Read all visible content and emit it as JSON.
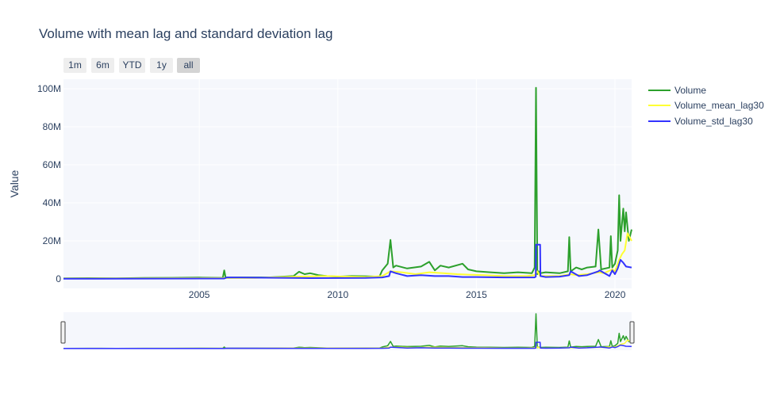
{
  "title": "Volume with mean lag and standard deviation lag",
  "range_buttons": [
    {
      "label": "1m",
      "active": false
    },
    {
      "label": "6m",
      "active": false
    },
    {
      "label": "YTD",
      "active": false
    },
    {
      "label": "1y",
      "active": false
    },
    {
      "label": "all",
      "active": true
    }
  ],
  "colors": {
    "plot_bg": "#f5f7fc",
    "grid": "#ffffff",
    "text": "#2a3f5f"
  },
  "chart_data": {
    "type": "line",
    "ylabel": "Value",
    "xlabel": "",
    "xlim": [
      2000.1,
      2020.6
    ],
    "ylim": [
      -5000000,
      105000000
    ],
    "x_ticks": [
      2005,
      2010,
      2015,
      2020
    ],
    "x_tick_labels": [
      "2005",
      "2010",
      "2015",
      "2020"
    ],
    "y_ticks": [
      0,
      20000000,
      40000000,
      60000000,
      80000000,
      100000000
    ],
    "y_tick_labels": [
      "0",
      "20M",
      "40M",
      "60M",
      "80M",
      "100M"
    ],
    "grid": true,
    "legend_position": "top-right",
    "range_slider": true,
    "series": [
      {
        "name": "Volume",
        "color": "#2ca02c",
        "x": [
          2000.1,
          2001.0,
          2002.0,
          2003.0,
          2004.0,
          2005.0,
          2005.85,
          2005.9,
          2005.95,
          2006.5,
          2007.5,
          2008.4,
          2008.6,
          2008.8,
          2009.0,
          2009.3,
          2009.6,
          2010.0,
          2010.5,
          2011.0,
          2011.5,
          2011.6,
          2011.8,
          2011.9,
          2012.0,
          2012.1,
          2012.5,
          2013.0,
          2013.3,
          2013.5,
          2013.7,
          2014.0,
          2014.5,
          2014.7,
          2015.0,
          2015.5,
          2016.0,
          2016.5,
          2017.0,
          2017.1,
          2017.15,
          2017.2,
          2017.25,
          2017.3,
          2017.5,
          2018.0,
          2018.3,
          2018.35,
          2018.4,
          2018.6,
          2018.8,
          2019.0,
          2019.3,
          2019.4,
          2019.5,
          2019.8,
          2019.85,
          2019.9,
          2020.0,
          2020.1,
          2020.15,
          2020.2,
          2020.3,
          2020.35,
          2020.4,
          2020.5,
          2020.6
        ],
        "y": [
          300000,
          400000,
          300000,
          500000,
          600000,
          700000,
          600000,
          4500000,
          700000,
          800000,
          800000,
          1500000,
          3800000,
          2500000,
          3000000,
          2000000,
          1500000,
          1200000,
          1500000,
          1400000,
          1200000,
          4500000,
          8000000,
          20500000,
          6000000,
          7000000,
          5500000,
          6500000,
          9000000,
          4500000,
          7000000,
          6000000,
          8000000,
          5000000,
          4000000,
          3500000,
          3000000,
          3500000,
          3000000,
          6000000,
          100500000,
          2500000,
          4000000,
          3000000,
          3500000,
          3000000,
          4000000,
          22000000,
          4000000,
          6000000,
          5000000,
          6000000,
          6500000,
          26000000,
          5000000,
          6000000,
          22500000,
          6000000,
          8000000,
          15000000,
          44000000,
          20000000,
          37000000,
          25000000,
          35000000,
          20000000,
          26000000
        ]
      },
      {
        "name": "Volume_mean_lag30",
        "color": "#ffff33",
        "x": [
          2000.1,
          2002.0,
          2005.0,
          2007.0,
          2008.5,
          2009.5,
          2011.0,
          2011.6,
          2011.9,
          2012.3,
          2012.8,
          2013.3,
          2013.8,
          2014.3,
          2014.8,
          2015.3,
          2016.0,
          2016.8,
          2017.1,
          2017.2,
          2017.3,
          2017.5,
          2018.0,
          2018.4,
          2018.6,
          2019.0,
          2019.4,
          2019.6,
          2019.9,
          2020.0,
          2020.15,
          2020.25,
          2020.35,
          2020.45,
          2020.6
        ],
        "y": [
          200000,
          250000,
          400000,
          500000,
          1200000,
          1500000,
          1000000,
          1500000,
          4000000,
          3500000,
          2500000,
          3500000,
          3000000,
          2500000,
          2200000,
          2000000,
          1500000,
          1500000,
          2000000,
          4000000,
          1500000,
          1500000,
          1500000,
          2500000,
          2000000,
          2500000,
          3500000,
          3000000,
          5000000,
          4000000,
          10000000,
          13000000,
          15000000,
          24000000,
          20000000
        ]
      },
      {
        "name": "Volume_std_lag30",
        "color": "#3333ff",
        "x": [
          2000.1,
          2003.0,
          2005.9,
          2006.0,
          2009.0,
          2011.0,
          2011.6,
          2011.85,
          2011.9,
          2012.1,
          2012.5,
          2013.0,
          2013.5,
          2014.0,
          2014.5,
          2015.0,
          2016.0,
          2017.1,
          2017.14,
          2017.15,
          2017.3,
          2017.31,
          2017.5,
          2018.0,
          2018.35,
          2018.4,
          2018.7,
          2019.0,
          2019.4,
          2019.45,
          2019.8,
          2019.9,
          2020.0,
          2020.1,
          2020.2,
          2020.3,
          2020.4,
          2020.6
        ],
        "y": [
          100000,
          150000,
          200000,
          800000,
          400000,
          500000,
          800000,
          1500000,
          4000000,
          3000000,
          1500000,
          2000000,
          1500000,
          1500000,
          1000000,
          1000000,
          800000,
          800000,
          1200000,
          18000000,
          18000000,
          1500000,
          1000000,
          1200000,
          2000000,
          4000000,
          1500000,
          2000000,
          4000000,
          4500000,
          1500000,
          4500000,
          2500000,
          5500000,
          10000000,
          8500000,
          6500000,
          6000000
        ]
      }
    ]
  }
}
